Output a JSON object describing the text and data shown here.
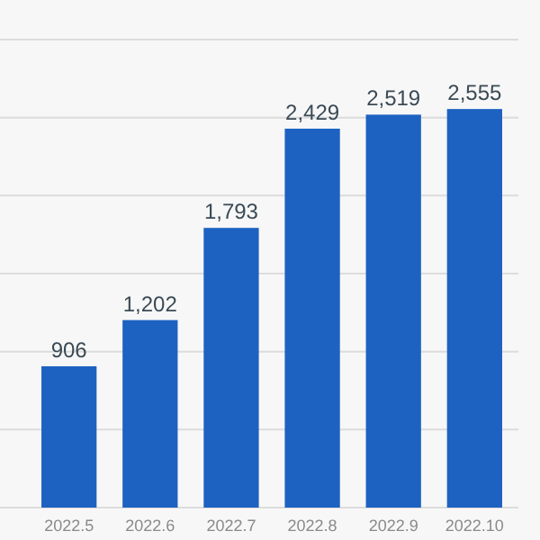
{
  "chart_data": {
    "type": "bar",
    "categories": [
      "2022.5",
      "2022.6",
      "2022.7",
      "2022.8",
      "2022.9",
      "2022.10"
    ],
    "values": [
      906,
      1202,
      1793,
      2429,
      2519,
      2555
    ],
    "color": "#1d62c1",
    "ylim": [
      0,
      3000
    ],
    "yticks": [
      {
        "value": 0,
        "label": null
      },
      {
        "value": 500,
        "label": null
      },
      {
        "value": 1000,
        "label": null
      },
      {
        "value": 1500,
        "label": null
      },
      {
        "value": 2000,
        "label": null
      },
      {
        "value": 2500,
        "label": null
      },
      {
        "value": 3000,
        "label": null
      }
    ],
    "value_labels": [
      "906",
      "1,202",
      "1,793",
      "2,429",
      "2,519",
      "2,555"
    ],
    "grid": "y",
    "tick_labels": "x"
  }
}
